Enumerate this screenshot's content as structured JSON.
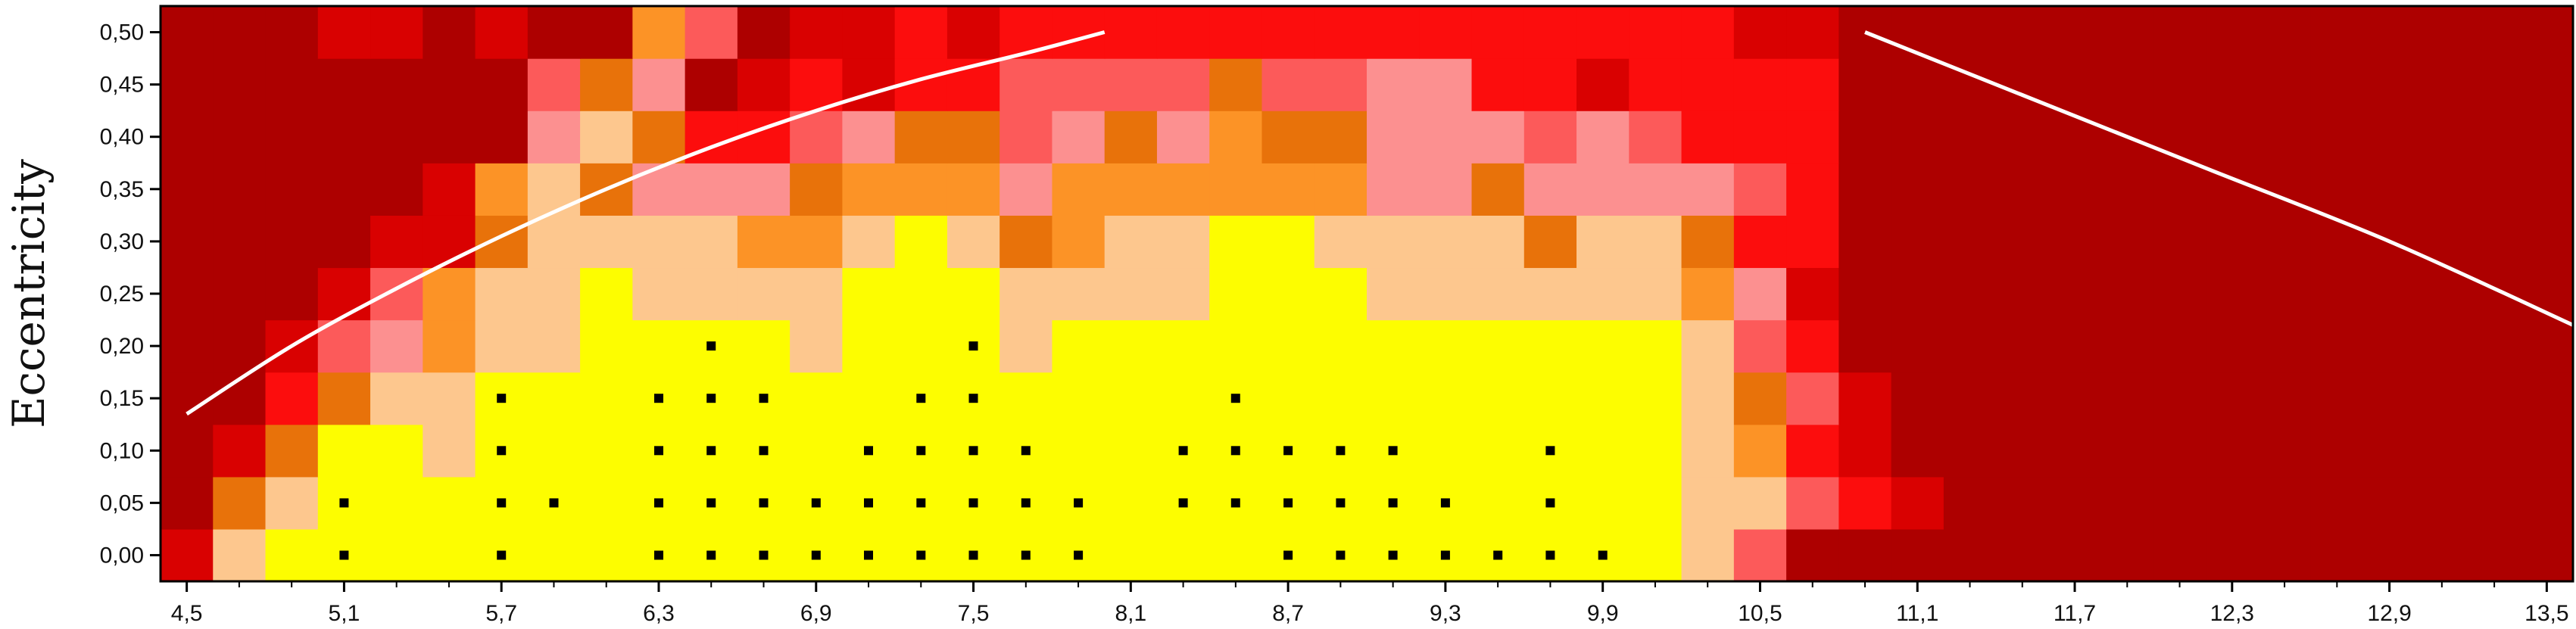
{
  "chart_data": {
    "type": "heatmap",
    "title": "",
    "xlabel": "",
    "ylabel": "Eccentricity",
    "xlim": [
      4.4,
      13.6
    ],
    "ylim": [
      -0.025,
      0.525
    ],
    "x_tick_labels": [
      "4,5",
      "5,1",
      "5,7",
      "6,3",
      "6,9",
      "7,5",
      "8,1",
      "8,7",
      "9,3",
      "9,9",
      "10,5",
      "11,1",
      "11,7",
      "12,3",
      "12,9",
      "13,5"
    ],
    "x_ticks": [
      4.5,
      5.1,
      5.7,
      6.3,
      6.9,
      7.5,
      8.1,
      8.7,
      9.3,
      9.9,
      10.5,
      11.1,
      11.7,
      12.3,
      12.9,
      13.5
    ],
    "y_tick_labels": [
      "0,00",
      "0,05",
      "0,10",
      "0,15",
      "0,20",
      "0,25",
      "0,30",
      "0,35",
      "0,40",
      "0,45",
      "0,50"
    ],
    "y_ticks": [
      0,
      0.05,
      0.1,
      0.15,
      0.2,
      0.25,
      0.3,
      0.35,
      0.4,
      0.45,
      0.5
    ],
    "x_start": 4.5,
    "x_step": 0.2,
    "y_start": 0.0,
    "y_step": 0.05,
    "grid": false,
    "colors": {
      "0": "#fdfd00",
      "1": "#fdc78e",
      "2": "#fc9326",
      "3": "#e8720a",
      "4": "#fc9090",
      "5": "#fc5a5a",
      "6": "#fc0d0d",
      "7": "#d90101",
      "8": "#ad0000"
    },
    "grid_values": [
      [
        7,
        1,
        0,
        0,
        0,
        0,
        0,
        0,
        0,
        0,
        0,
        0,
        0,
        0,
        0,
        0,
        0,
        0,
        0,
        0,
        0,
        0,
        0,
        0,
        0,
        0,
        0,
        0,
        0,
        1,
        5,
        8,
        8,
        8,
        8,
        8,
        8,
        8,
        8,
        8,
        8,
        8,
        8,
        8,
        8,
        8
      ],
      [
        8,
        3,
        1,
        0,
        0,
        0,
        0,
        0,
        0,
        0,
        0,
        0,
        0,
        0,
        0,
        0,
        0,
        0,
        0,
        0,
        0,
        0,
        0,
        0,
        0,
        0,
        0,
        0,
        0,
        1,
        1,
        5,
        6,
        7,
        8,
        8,
        8,
        8,
        8,
        8,
        8,
        8,
        8,
        8,
        8,
        8
      ],
      [
        8,
        7,
        3,
        0,
        0,
        1,
        0,
        0,
        0,
        0,
        0,
        0,
        0,
        0,
        0,
        0,
        0,
        0,
        0,
        0,
        0,
        0,
        0,
        0,
        0,
        0,
        0,
        0,
        0,
        1,
        2,
        6,
        7,
        8,
        8,
        8,
        8,
        8,
        8,
        8,
        8,
        8,
        8,
        8,
        8,
        8
      ],
      [
        8,
        8,
        6,
        3,
        1,
        1,
        0,
        0,
        0,
        0,
        0,
        0,
        0,
        0,
        0,
        0,
        0,
        0,
        0,
        0,
        0,
        0,
        0,
        0,
        0,
        0,
        0,
        0,
        0,
        1,
        3,
        5,
        7,
        8,
        8,
        8,
        8,
        8,
        8,
        8,
        8,
        8,
        8,
        8,
        8,
        8
      ],
      [
        8,
        8,
        7,
        5,
        4,
        2,
        1,
        1,
        0,
        0,
        0,
        0,
        1,
        0,
        0,
        0,
        1,
        0,
        0,
        0,
        0,
        0,
        0,
        0,
        0,
        0,
        0,
        0,
        0,
        1,
        5,
        6,
        8,
        8,
        8,
        8,
        8,
        8,
        8,
        8,
        8,
        8,
        8,
        8,
        8,
        8
      ],
      [
        8,
        8,
        8,
        7,
        5,
        2,
        1,
        1,
        0,
        1,
        1,
        1,
        1,
        0,
        0,
        0,
        1,
        1,
        1,
        1,
        0,
        0,
        0,
        1,
        1,
        1,
        1,
        1,
        1,
        2,
        4,
        7,
        8,
        8,
        8,
        8,
        8,
        8,
        8,
        8,
        8,
        8,
        8,
        8,
        8,
        8
      ],
      [
        8,
        8,
        8,
        8,
        7,
        7,
        3,
        1,
        1,
        1,
        1,
        2,
        2,
        1,
        0,
        1,
        3,
        2,
        1,
        1,
        0,
        0,
        1,
        1,
        1,
        1,
        3,
        1,
        1,
        3,
        6,
        6,
        8,
        8,
        8,
        8,
        8,
        8,
        8,
        8,
        8,
        8,
        8,
        8,
        8,
        8
      ],
      [
        8,
        8,
        8,
        8,
        8,
        7,
        2,
        1,
        3,
        4,
        4,
        4,
        3,
        2,
        2,
        2,
        4,
        2,
        2,
        2,
        2,
        2,
        2,
        4,
        4,
        3,
        4,
        4,
        4,
        4,
        5,
        6,
        8,
        8,
        8,
        8,
        8,
        8,
        8,
        8,
        8,
        8,
        8,
        8,
        8,
        8
      ],
      [
        8,
        8,
        8,
        8,
        8,
        8,
        8,
        4,
        1,
        3,
        6,
        6,
        5,
        4,
        3,
        3,
        5,
        4,
        3,
        4,
        2,
        3,
        3,
        4,
        4,
        4,
        5,
        4,
        5,
        6,
        6,
        6,
        8,
        8,
        8,
        8,
        8,
        8,
        8,
        8,
        8,
        8,
        8,
        8,
        8,
        8
      ],
      [
        8,
        8,
        8,
        8,
        8,
        8,
        8,
        5,
        3,
        4,
        8,
        7,
        6,
        7,
        6,
        6,
        5,
        5,
        5,
        5,
        3,
        5,
        5,
        4,
        4,
        6,
        6,
        7,
        6,
        6,
        6,
        6,
        8,
        8,
        8,
        8,
        8,
        8,
        8,
        8,
        8,
        8,
        8,
        8,
        8,
        8
      ],
      [
        8,
        8,
        8,
        7,
        7,
        8,
        7,
        8,
        8,
        2,
        5,
        8,
        7,
        7,
        6,
        7,
        6,
        6,
        6,
        6,
        6,
        6,
        6,
        6,
        6,
        6,
        6,
        6,
        6,
        6,
        7,
        7,
        8,
        8,
        8,
        8,
        8,
        8,
        8,
        8,
        8,
        8,
        8,
        8,
        8,
        8
      ]
    ],
    "stable_points": [
      [
        5.1,
        0.0
      ],
      [
        5.7,
        0.0
      ],
      [
        6.3,
        0.0
      ],
      [
        6.5,
        0.0
      ],
      [
        6.7,
        0.0
      ],
      [
        6.9,
        0.0
      ],
      [
        7.1,
        0.0
      ],
      [
        7.3,
        0.0
      ],
      [
        7.5,
        0.0
      ],
      [
        7.7,
        0.0
      ],
      [
        7.9,
        0.0
      ],
      [
        8.7,
        0.0
      ],
      [
        8.9,
        0.0
      ],
      [
        9.1,
        0.0
      ],
      [
        9.3,
        0.0
      ],
      [
        9.5,
        0.0
      ],
      [
        9.7,
        0.0
      ],
      [
        9.9,
        0.0
      ],
      [
        5.1,
        0.05
      ],
      [
        5.7,
        0.05
      ],
      [
        5.9,
        0.05
      ],
      [
        6.3,
        0.05
      ],
      [
        6.5,
        0.05
      ],
      [
        6.7,
        0.05
      ],
      [
        6.9,
        0.05
      ],
      [
        7.1,
        0.05
      ],
      [
        7.3,
        0.05
      ],
      [
        7.5,
        0.05
      ],
      [
        7.7,
        0.05
      ],
      [
        7.9,
        0.05
      ],
      [
        8.3,
        0.05
      ],
      [
        8.5,
        0.05
      ],
      [
        8.7,
        0.05
      ],
      [
        8.9,
        0.05
      ],
      [
        9.1,
        0.05
      ],
      [
        9.3,
        0.05
      ],
      [
        9.7,
        0.05
      ],
      [
        5.7,
        0.1
      ],
      [
        6.3,
        0.1
      ],
      [
        6.5,
        0.1
      ],
      [
        6.7,
        0.1
      ],
      [
        7.1,
        0.1
      ],
      [
        7.3,
        0.1
      ],
      [
        7.5,
        0.1
      ],
      [
        7.7,
        0.1
      ],
      [
        8.3,
        0.1
      ],
      [
        8.5,
        0.1
      ],
      [
        8.7,
        0.1
      ],
      [
        8.9,
        0.1
      ],
      [
        9.1,
        0.1
      ],
      [
        9.7,
        0.1
      ],
      [
        5.7,
        0.15
      ],
      [
        6.3,
        0.15
      ],
      [
        6.5,
        0.15
      ],
      [
        6.7,
        0.15
      ],
      [
        7.3,
        0.15
      ],
      [
        7.5,
        0.15
      ],
      [
        8.5,
        0.15
      ],
      [
        6.5,
        0.2
      ],
      [
        7.5,
        0.2
      ]
    ],
    "curves": [
      {
        "points": [
          [
            4.5,
            0.135
          ],
          [
            4.9,
            0.2
          ],
          [
            5.3,
            0.255
          ],
          [
            5.7,
            0.305
          ],
          [
            6.1,
            0.35
          ],
          [
            6.5,
            0.39
          ],
          [
            6.9,
            0.425
          ],
          [
            7.3,
            0.455
          ],
          [
            7.7,
            0.48
          ],
          [
            8.0,
            0.5
          ]
        ]
      },
      {
        "points": [
          [
            10.9,
            0.5
          ],
          [
            11.5,
            0.44
          ],
          [
            12.2,
            0.37
          ],
          [
            12.9,
            0.3
          ],
          [
            13.6,
            0.22
          ]
        ]
      }
    ]
  }
}
